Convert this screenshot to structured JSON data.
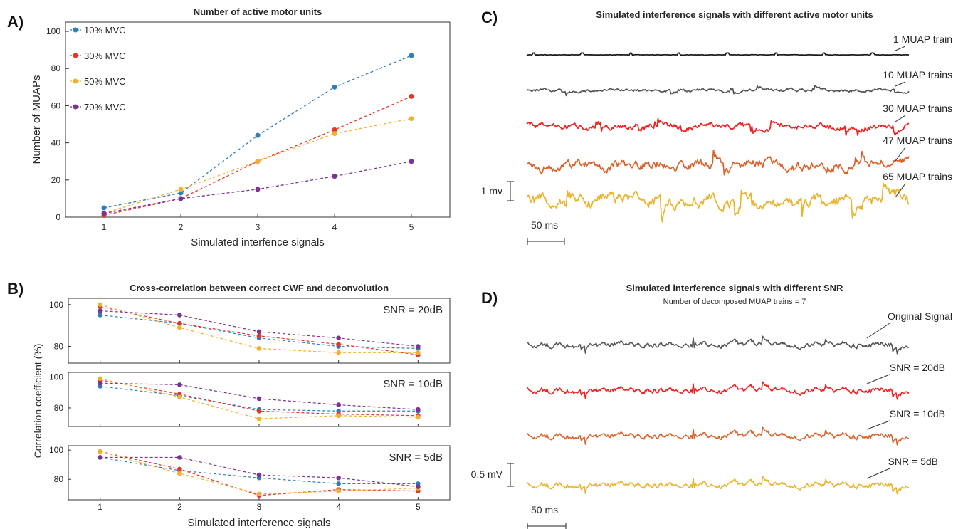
{
  "panel_letters": [
    "A)",
    "B)",
    "C)",
    "D)"
  ],
  "colors": {
    "blue": "#2e7ebd",
    "red": "#e5352b",
    "yellow": "#f2b12b",
    "purple": "#7b3395",
    "black": "#1a1a1a",
    "gray": "#555555",
    "bright_red": "#f21f1f",
    "orange": "#d9622a",
    "gold": "#eab32c"
  },
  "chart_data": [
    {
      "panel": "A)",
      "type": "line",
      "title": "Number of active motor units",
      "xlabel": "Simulated interfence signals",
      "ylabel": "Number of MUAPs",
      "x": [
        1,
        2,
        3,
        4,
        5
      ],
      "xlim": [
        0.5,
        5.5
      ],
      "ylim": [
        0,
        105
      ],
      "yticks": [
        0,
        20,
        40,
        60,
        80,
        100
      ],
      "legend_position": "top-left",
      "series": [
        {
          "name": "10% MVC",
          "color": "blue",
          "values": [
            5,
            13,
            44,
            70,
            87
          ]
        },
        {
          "name": "30% MVC",
          "color": "red",
          "values": [
            1,
            10,
            30,
            47,
            65
          ]
        },
        {
          "name": "50% MVC",
          "color": "yellow",
          "values": [
            2,
            15,
            30,
            45,
            53
          ]
        },
        {
          "name": "70% MVC",
          "color": "purple",
          "values": [
            2,
            10,
            15,
            22,
            30
          ]
        }
      ]
    },
    {
      "panel": "B)",
      "type": "line",
      "title": "Cross-correlation between correct CWF and deconvolution",
      "xlabel": "Simulated interference signals",
      "ylabel": "Correlation coefficient (%)",
      "x": [
        1,
        2,
        3,
        4,
        5
      ],
      "xlim": [
        0.6,
        5.4
      ],
      "subplots": [
        {
          "label": "SNR = 20dB",
          "ylim": [
            72,
            103
          ],
          "yticks": [
            80,
            100
          ],
          "series": [
            {
              "color": "blue",
              "values": [
                95,
                91,
                84,
                80,
                79
              ]
            },
            {
              "color": "red",
              "values": [
                99,
                91,
                85,
                81,
                76
              ]
            },
            {
              "color": "yellow",
              "values": [
                100,
                89,
                79,
                77,
                77
              ]
            },
            {
              "color": "purple",
              "values": [
                97,
                95,
                87,
                84,
                80
              ]
            }
          ]
        },
        {
          "label": "SNR = 10dB",
          "ylim": [
            68,
            103
          ],
          "yticks": [
            80,
            100
          ],
          "series": [
            {
              "color": "blue",
              "values": [
                94,
                88,
                79,
                78,
                78
              ]
            },
            {
              "color": "red",
              "values": [
                98,
                89,
                78,
                76,
                75
              ]
            },
            {
              "color": "yellow",
              "values": [
                99,
                87,
                73,
                75,
                74
              ]
            },
            {
              "color": "purple",
              "values": [
                96,
                95,
                86,
                82,
                79
              ]
            }
          ]
        },
        {
          "label": "SNR = 5dB",
          "ylim": [
            66,
            103
          ],
          "yticks": [
            80,
            100
          ],
          "series": [
            {
              "color": "blue",
              "values": [
                95,
                86,
                81,
                77,
                77
              ]
            },
            {
              "color": "red",
              "values": [
                99,
                87,
                69,
                73,
                72
              ]
            },
            {
              "color": "yellow",
              "values": [
                99,
                84,
                70,
                72,
                74
              ]
            },
            {
              "color": "purple",
              "values": [
                95,
                95,
                83,
                81,
                75
              ]
            }
          ]
        }
      ]
    },
    {
      "panel": "C)",
      "type": "line",
      "title": "Simulated interference signals with different active motor units",
      "scale_amplitude": "1 mv",
      "scale_time": "50 ms",
      "traces": [
        {
          "label": "1 MUAP train",
          "color": "black"
        },
        {
          "label": "10 MUAP trains",
          "color": "gray"
        },
        {
          "label": "30 MUAP trains",
          "color": "bright_red"
        },
        {
          "label": "47 MUAP trains",
          "color": "orange"
        },
        {
          "label": "65 MUAP trains",
          "color": "gold"
        }
      ]
    },
    {
      "panel": "D)",
      "type": "line",
      "title": "Simulated interference signals with different SNR",
      "subtitle": "Number of decomposed MUAP trains = 7",
      "scale_amplitude": "0.5 mV",
      "scale_time": "50 ms",
      "traces": [
        {
          "label": "Original Signal",
          "color": "gray"
        },
        {
          "label": "SNR = 20dB",
          "color": "bright_red"
        },
        {
          "label": "SNR = 10dB",
          "color": "orange"
        },
        {
          "label": "SNR = 5dB",
          "color": "gold"
        }
      ]
    }
  ]
}
